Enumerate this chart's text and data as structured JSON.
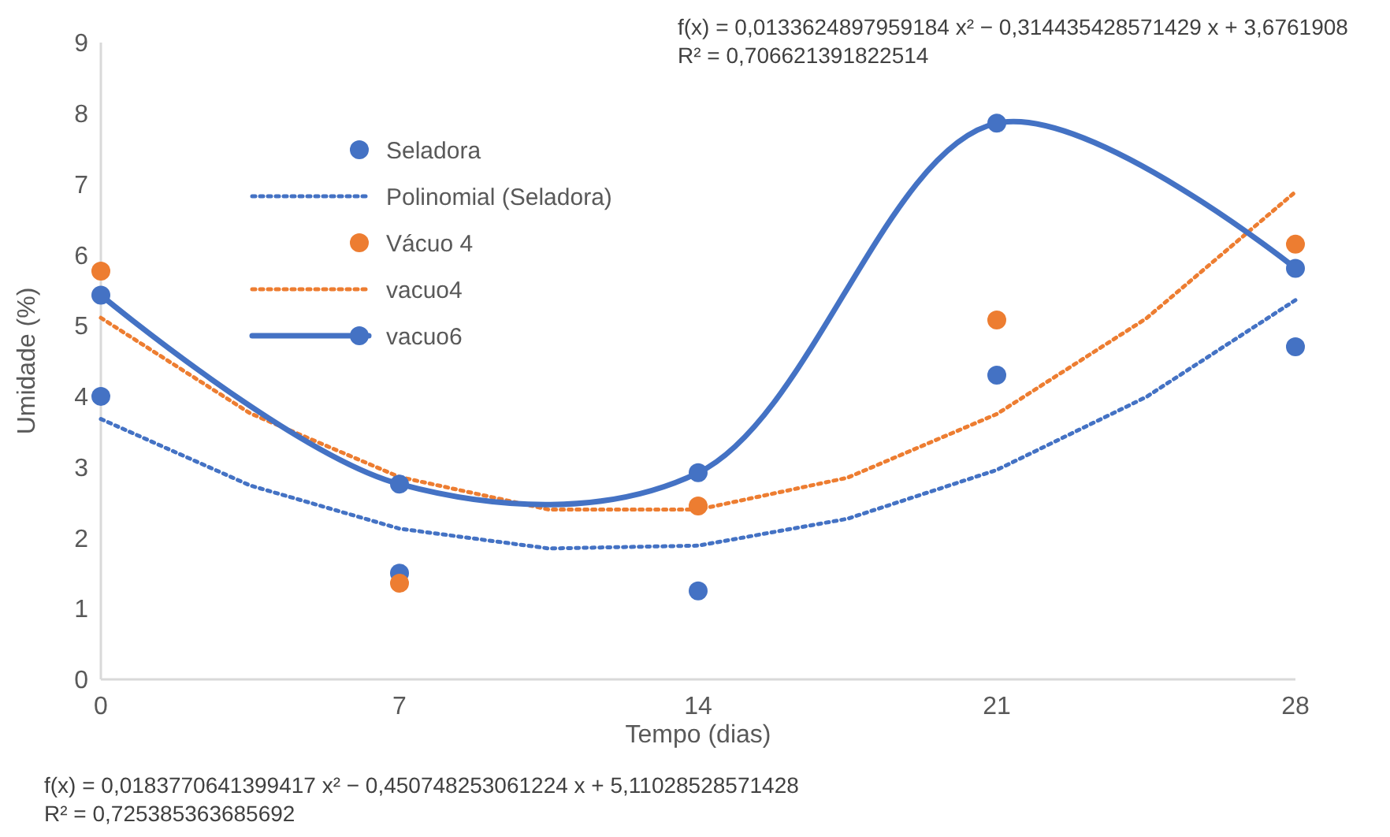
{
  "chart_data": {
    "type": "scatter",
    "xlabel": "Tempo (dias)",
    "ylabel": "Umidade (%)",
    "xlim": [
      0,
      28
    ],
    "xticks": [
      0,
      7,
      14,
      21,
      28
    ],
    "ylim": [
      0,
      9
    ],
    "yticks": [
      0,
      1,
      2,
      3,
      4,
      5,
      6,
      7,
      8,
      9
    ],
    "grid": false,
    "legend": "top left",
    "series": [
      {
        "name": "Seladora",
        "marker": "circle",
        "color": "#4472c4",
        "x": [
          0,
          7,
          14,
          21,
          28
        ],
        "values": [
          4.0,
          1.5,
          1.25,
          4.3,
          4.7
        ]
      },
      {
        "name": "Polinomial (Seladora)",
        "type": "line",
        "marker": "none",
        "line_style": "dotted",
        "color": "#4472c4",
        "x": [
          0,
          3.5,
          7,
          10.5,
          14,
          17.5,
          21,
          24.5,
          28
        ],
        "values": [
          3.68,
          2.74,
          2.13,
          1.85,
          1.89,
          2.27,
          2.96,
          3.99,
          5.36
        ]
      },
      {
        "name": "Vácuo 4",
        "marker": "circle",
        "color": "#ed7d31",
        "x": [
          0,
          7,
          14,
          21,
          28
        ],
        "values": [
          5.77,
          1.36,
          2.45,
          5.08,
          6.15
        ]
      },
      {
        "name": "vacuo4",
        "type": "line",
        "marker": "none",
        "line_style": "dotted",
        "color": "#ed7d31",
        "x": [
          0,
          3.5,
          7,
          10.5,
          14,
          17.5,
          21,
          24.5,
          28
        ],
        "values": [
          5.11,
          3.76,
          2.86,
          2.4,
          2.4,
          2.85,
          3.75,
          5.1,
          6.89
        ]
      },
      {
        "name": "vacuo6",
        "type": "line",
        "marker": "circle",
        "line_style": "solid",
        "color": "#4472c4",
        "x": [
          0,
          7,
          14,
          21,
          28
        ],
        "values": [
          5.43,
          2.76,
          2.92,
          7.86,
          5.81
        ]
      }
    ],
    "annotations": [
      "f(x) = 0,0133624897959184 x² − 0,314435428571429 x + 3,6761908\nR² = 0,706621391822514",
      "f(x) = 0,0183770641399417 x² − 0,450748253061224 x + 5,11028528571428\nR² = 0,725385363685692"
    ]
  }
}
